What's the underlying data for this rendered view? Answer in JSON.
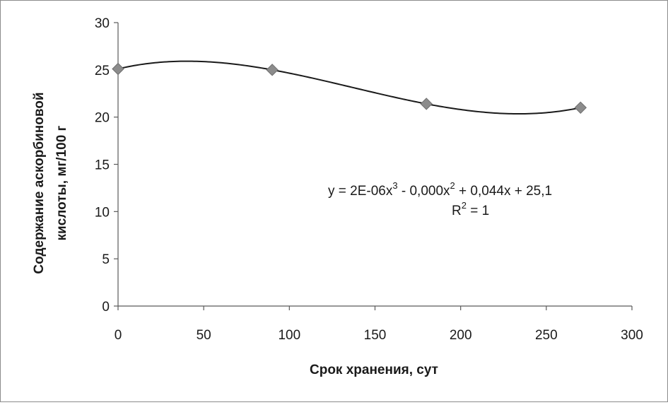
{
  "chart_data": {
    "type": "scatter",
    "title": "",
    "xlabel": "Срок хранения,  сут",
    "ylabel_line1": "Содержание аскорбиновой",
    "ylabel_line2": "кислоты, мг/100 г",
    "xlim": [
      0,
      300
    ],
    "ylim": [
      0,
      30
    ],
    "x_ticks": [
      0,
      50,
      100,
      150,
      200,
      250,
      300
    ],
    "y_ticks": [
      0,
      5,
      10,
      15,
      20,
      25,
      30
    ],
    "grid": false,
    "legend": "none",
    "marker_color": "#8c8c8c",
    "line_color": "#1a1a1a",
    "points": [
      {
        "x": 0,
        "y": 25.1
      },
      {
        "x": 90,
        "y": 25.0
      },
      {
        "x": 180,
        "y": 21.4
      },
      {
        "x": 270,
        "y": 21.0
      }
    ],
    "trendline": {
      "type": "polynomial",
      "order": 3
    },
    "annotation": {
      "equation_parts": [
        "y = 2E-06x",
        "3",
        " - 0,000x",
        "2",
        " + 0,044x  + 25,1"
      ],
      "r2_parts": [
        "R",
        "2",
        " = 1"
      ]
    }
  }
}
